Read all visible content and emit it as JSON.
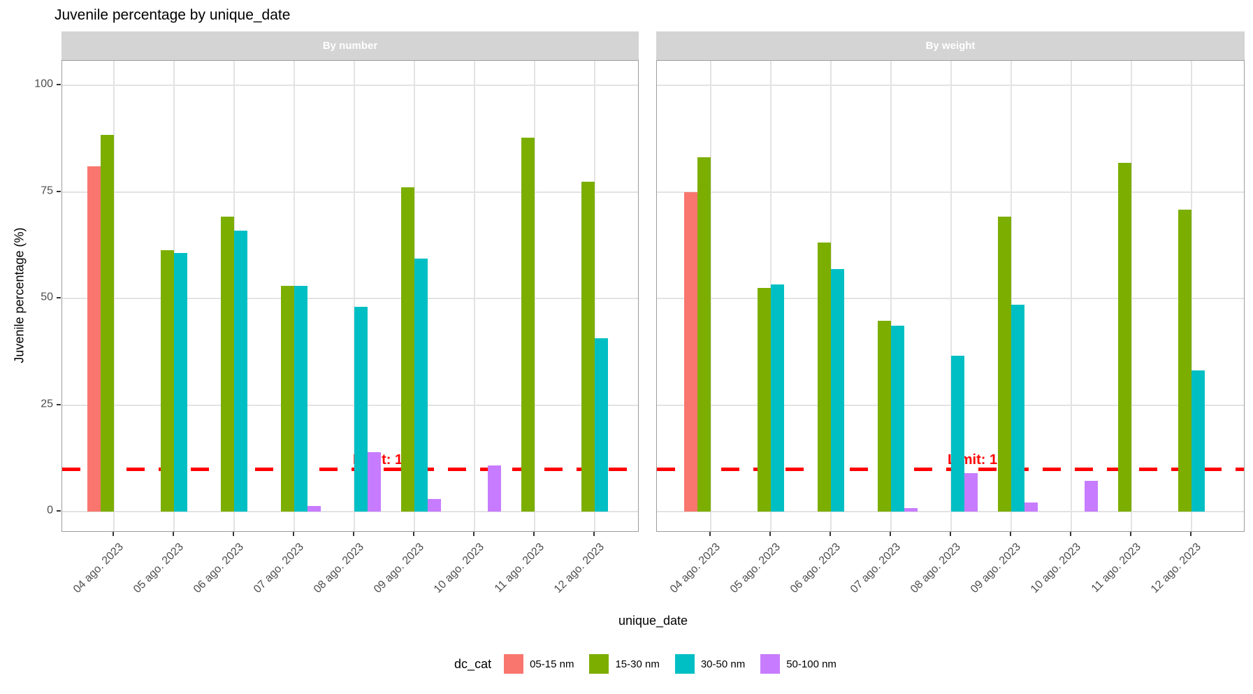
{
  "title": "Juvenile percentage by unique_date",
  "y_axis": {
    "title": "Juvenile percentage (%)",
    "ticks": [
      0,
      25,
      50,
      75,
      100
    ]
  },
  "x_axis": {
    "title": "unique_date"
  },
  "limit_line": {
    "label": "Limit: 10 %",
    "value": 10,
    "color": "#ff0000"
  },
  "legend": {
    "title": "dc_cat"
  },
  "chart_data": {
    "type": "bar",
    "mode": "grouped",
    "ylim": [
      0,
      100
    ],
    "ylabel": "Juvenile percentage (%)",
    "xlabel": "unique_date",
    "grid": "major-on",
    "legend_position": "bottom",
    "reference_line": {
      "y": 10,
      "style": "dashed",
      "color": "#ff0000",
      "label": "Limit: 10 %"
    },
    "categories": [
      "04 ago. 2023",
      "05 ago. 2023",
      "06 ago. 2023",
      "07 ago. 2023",
      "08 ago. 2023",
      "09 ago. 2023",
      "10 ago. 2023",
      "11 ago. 2023",
      "12 ago. 2023"
    ],
    "facets": [
      {
        "label": "By number",
        "series": [
          {
            "name": "05-15 nm",
            "color": "#F8766D",
            "values": [
              81.0,
              null,
              null,
              null,
              null,
              null,
              null,
              null,
              null
            ]
          },
          {
            "name": "15-30 nm",
            "color": "#7CAE00",
            "values": [
              88.5,
              61.3,
              69.3,
              53.0,
              null,
              76.1,
              null,
              87.7,
              77.5
            ]
          },
          {
            "name": "30-50 nm",
            "color": "#00BFC4",
            "values": [
              null,
              60.7,
              66.0,
              53.0,
              48.0,
              59.4,
              null,
              null,
              40.7
            ]
          },
          {
            "name": "50-100 nm",
            "color": "#C77CFF",
            "values": [
              null,
              null,
              null,
              1.3,
              14.0,
              3.0,
              10.8,
              null,
              null
            ]
          }
        ]
      },
      {
        "label": "By weight",
        "series": [
          {
            "name": "05-15 nm",
            "color": "#F8766D",
            "values": [
              74.9,
              null,
              null,
              null,
              null,
              null,
              null,
              null,
              null
            ]
          },
          {
            "name": "15-30 nm",
            "color": "#7CAE00",
            "values": [
              83.1,
              52.5,
              63.1,
              44.8,
              null,
              69.3,
              null,
              81.8,
              70.8
            ]
          },
          {
            "name": "30-50 nm",
            "color": "#00BFC4",
            "values": [
              null,
              53.3,
              56.9,
              43.6,
              36.5,
              48.6,
              null,
              null,
              33.2
            ]
          },
          {
            "name": "50-100 nm",
            "color": "#C77CFF",
            "values": [
              null,
              null,
              null,
              0.8,
              9.0,
              2.1,
              7.2,
              null,
              null
            ]
          }
        ]
      }
    ]
  }
}
